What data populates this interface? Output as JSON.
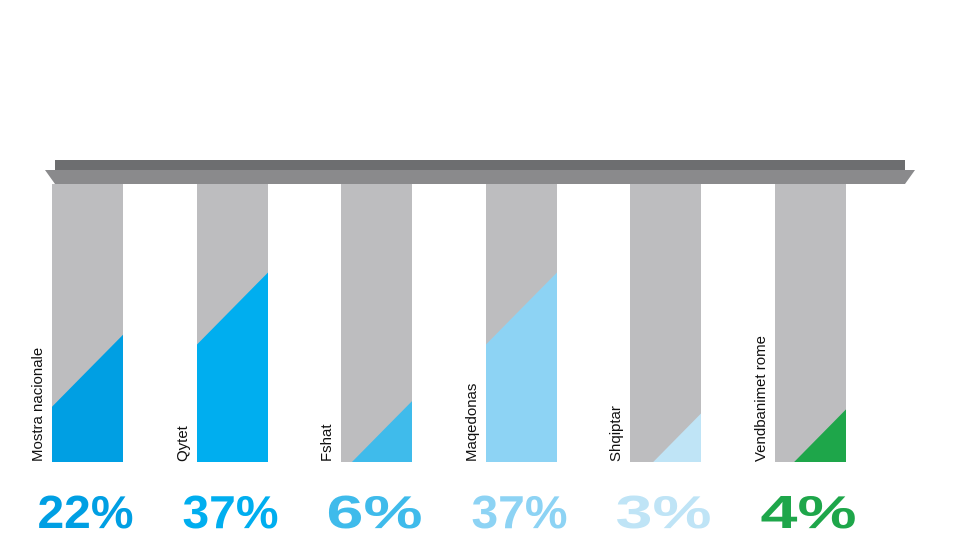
{
  "chart_data": {
    "type": "bar",
    "categories": [
      "Mostra nacionale",
      "Qytet",
      "Fshat",
      "Maqedonas",
      "Shqiptar",
      "Vendbanimet rome"
    ],
    "values": [
      22,
      37,
      6,
      37,
      3,
      4
    ],
    "value_labels": [
      "22%",
      "37%",
      "6%",
      "37%",
      "3%",
      "4%"
    ],
    "colors": [
      "#009fe3",
      "#00aeef",
      "#3fbbeb",
      "#8dd3f4",
      "#bfe4f6",
      "#1ea64a"
    ],
    "ylim": [
      0,
      67
    ]
  }
}
